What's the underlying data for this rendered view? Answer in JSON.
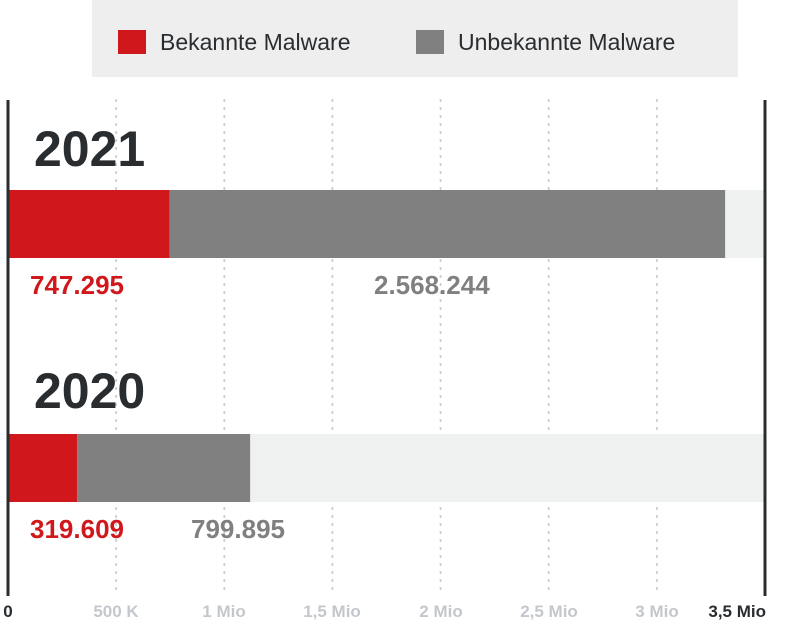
{
  "chart_data": {
    "type": "bar",
    "orientation": "horizontal",
    "stacked": true,
    "categories": [
      "2021",
      "2020"
    ],
    "series": [
      {
        "name": "Bekannte Malware",
        "values": [
          747295,
          319609
        ],
        "labels": [
          "747.295",
          "319.609"
        ],
        "color": "#d0181c"
      },
      {
        "name": "Unbekannte Malware",
        "values": [
          2568244,
          799895
        ],
        "labels": [
          "2.568.244",
          "799.895"
        ],
        "color": "#808080"
      }
    ],
    "xlim": [
      0,
      3500000
    ],
    "xticks": [
      0,
      500000,
      1000000,
      1500000,
      2000000,
      2500000,
      3000000,
      3500000
    ],
    "xtick_labels": [
      "0",
      "500 K",
      "1 Mio",
      "1,5 Mio",
      "2 Mio",
      "2,5 Mio",
      "3 Mio",
      "3,5 Mio"
    ],
    "grid": true,
    "legend_position": "top",
    "colors": {
      "track": "#eff0f0",
      "legend_bg": "#eeeeee",
      "axis": "#2a2d30",
      "grid": "#c8cccf"
    }
  }
}
